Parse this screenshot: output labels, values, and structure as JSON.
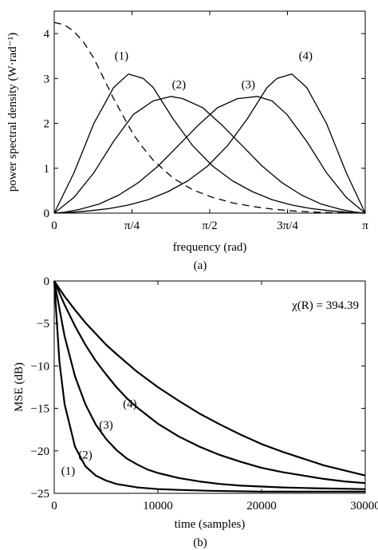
{
  "chart_data": [
    {
      "panel": "a",
      "type": "line",
      "caption": "(a)",
      "xlabel": "frequency (rad)",
      "ylabel": "power spectral density (W·rad⁻¹)",
      "xlim": [
        0,
        3.14159
      ],
      "ylim": [
        0,
        4.5
      ],
      "x_ticks": [
        {
          "value": 0,
          "label": "0"
        },
        {
          "value": 0.7854,
          "label": "π/4"
        },
        {
          "value": 1.5708,
          "label": "π/2"
        },
        {
          "value": 2.3562,
          "label": "3π/4"
        },
        {
          "value": 3.14159,
          "label": "π"
        }
      ],
      "y_ticks": [
        0,
        1,
        2,
        3,
        4
      ],
      "series": [
        {
          "name": "(1)",
          "style": "solid",
          "x": [
            0,
            0.2,
            0.4,
            0.6,
            0.75,
            0.9,
            1.0,
            1.2,
            1.4,
            1.6,
            1.8,
            2.0,
            2.2,
            2.4,
            2.6,
            2.8,
            3.0,
            3.14159
          ],
          "y": [
            0,
            0.9,
            2.0,
            2.8,
            3.1,
            3.0,
            2.8,
            2.1,
            1.5,
            1.05,
            0.72,
            0.48,
            0.3,
            0.18,
            0.1,
            0.05,
            0.015,
            0
          ]
        },
        {
          "name": "(2)",
          "style": "solid",
          "x": [
            0,
            0.2,
            0.4,
            0.6,
            0.8,
            1.0,
            1.18,
            1.3,
            1.5,
            1.7,
            1.9,
            2.1,
            2.3,
            2.5,
            2.7,
            2.9,
            3.05,
            3.14159
          ],
          "y": [
            0,
            0.35,
            0.9,
            1.6,
            2.2,
            2.5,
            2.6,
            2.55,
            2.35,
            1.95,
            1.5,
            1.05,
            0.68,
            0.4,
            0.2,
            0.08,
            0.02,
            0
          ]
        },
        {
          "name": "(3)",
          "style": "solid",
          "x": [
            0,
            0.1,
            0.25,
            0.45,
            0.65,
            0.85,
            1.05,
            1.25,
            1.45,
            1.65,
            1.85,
            2.05,
            2.2,
            2.35,
            2.55,
            2.75,
            2.95,
            3.14159
          ],
          "y": [
            0,
            0.02,
            0.08,
            0.2,
            0.4,
            0.68,
            1.05,
            1.5,
            1.95,
            2.35,
            2.55,
            2.6,
            2.5,
            2.2,
            1.6,
            0.9,
            0.35,
            0
          ]
        },
        {
          "name": "(4)",
          "style": "solid",
          "x": [
            0,
            0.15,
            0.35,
            0.55,
            0.75,
            0.95,
            1.15,
            1.35,
            1.55,
            1.75,
            1.95,
            2.15,
            2.25,
            2.4,
            2.55,
            2.75,
            2.95,
            3.14159
          ],
          "y": [
            0,
            0.015,
            0.05,
            0.1,
            0.18,
            0.3,
            0.48,
            0.72,
            1.05,
            1.5,
            2.1,
            2.8,
            3.0,
            3.1,
            2.8,
            2.0,
            0.9,
            0
          ]
        },
        {
          "name": "",
          "style": "dashed",
          "x": [
            0,
            0.1,
            0.2,
            0.3,
            0.4,
            0.5,
            0.6,
            0.7,
            0.8,
            0.9,
            1.0,
            1.2,
            1.4,
            1.6,
            1.8,
            2.0,
            2.2,
            2.4,
            2.6,
            2.8,
            3.0,
            3.14159
          ],
          "y": [
            4.25,
            4.2,
            4.05,
            3.8,
            3.45,
            3.0,
            2.55,
            2.15,
            1.75,
            1.45,
            1.18,
            0.78,
            0.52,
            0.35,
            0.23,
            0.15,
            0.09,
            0.05,
            0.025,
            0.01,
            0.003,
            0
          ]
        }
      ],
      "annotations": [
        {
          "text": "(1)",
          "x": 0.68,
          "y": 3.42
        },
        {
          "text": "(2)",
          "x": 1.26,
          "y": 2.78
        },
        {
          "text": "(3)",
          "x": 1.96,
          "y": 2.78
        },
        {
          "text": "(4)",
          "x": 2.54,
          "y": 3.42
        }
      ]
    },
    {
      "panel": "b",
      "type": "line",
      "caption": "(b)",
      "xlabel": "time (samples)",
      "ylabel": "MSE (dB)",
      "xlim": [
        0,
        30000
      ],
      "ylim": [
        -25,
        0
      ],
      "x_ticks": [
        {
          "value": 0,
          "label": "0"
        },
        {
          "value": 10000,
          "label": "10000"
        },
        {
          "value": 20000,
          "label": "20000"
        },
        {
          "value": 30000,
          "label": "30000"
        }
      ],
      "y_ticks": [
        0,
        -5,
        -10,
        -15,
        -20,
        -25
      ],
      "annotation_text": "χ(R) = 394.39",
      "series": [
        {
          "name": "(1)",
          "x": [
            0,
            500,
            1000,
            2000,
            3000,
            4000,
            5000,
            6000,
            7000,
            8000,
            10000,
            12000,
            15000,
            20000,
            25000,
            30000
          ],
          "y": [
            0,
            -9.5,
            -14.5,
            -19.5,
            -21.8,
            -22.9,
            -23.5,
            -23.9,
            -24.1,
            -24.3,
            -24.5,
            -24.6,
            -24.7,
            -24.8,
            -24.8,
            -24.8
          ]
        },
        {
          "name": "(2)",
          "x": [
            0,
            1000,
            2000,
            3000,
            4000,
            5000,
            6000,
            7000,
            8000,
            9000,
            10000,
            12000,
            14000,
            16000,
            18000,
            20000,
            22000,
            25000,
            30000
          ],
          "y": [
            0,
            -6.5,
            -11.2,
            -14.5,
            -16.9,
            -18.6,
            -19.9,
            -20.9,
            -21.6,
            -22.2,
            -22.6,
            -23.2,
            -23.6,
            -23.9,
            -24.1,
            -24.2,
            -24.3,
            -24.4,
            -24.5
          ]
        },
        {
          "name": "(3)",
          "x": [
            0,
            1000,
            2000,
            3000,
            4000,
            5000,
            6000,
            7000,
            8000,
            10000,
            12000,
            14000,
            16000,
            18000,
            20000,
            22000,
            24000,
            26000,
            28000,
            30000
          ],
          "y": [
            0,
            -2.8,
            -5.3,
            -7.5,
            -9.4,
            -11.0,
            -12.5,
            -13.8,
            -14.9,
            -16.8,
            -18.3,
            -19.5,
            -20.5,
            -21.3,
            -22.0,
            -22.5,
            -22.9,
            -23.3,
            -23.6,
            -23.8
          ]
        },
        {
          "name": "(4)",
          "x": [
            0,
            1000,
            2000,
            3000,
            4000,
            5000,
            6000,
            8000,
            10000,
            12000,
            14000,
            16000,
            18000,
            20000,
            22000,
            24000,
            26000,
            28000,
            30000
          ],
          "y": [
            0,
            -1.8,
            -3.4,
            -4.9,
            -6.2,
            -7.5,
            -8.6,
            -10.7,
            -12.5,
            -14.1,
            -15.6,
            -16.9,
            -18.1,
            -19.2,
            -20.1,
            -20.9,
            -21.7,
            -22.3,
            -22.9
          ]
        }
      ],
      "annotations": [
        {
          "text": "(1)",
          "x": 1350,
          "y": -22.8
        },
        {
          "text": "(2)",
          "x": 3000,
          "y": -20.9
        },
        {
          "text": "(3)",
          "x": 5000,
          "y": -17.4
        },
        {
          "text": "(4)",
          "x": 7300,
          "y": -14.9
        }
      ]
    }
  ]
}
